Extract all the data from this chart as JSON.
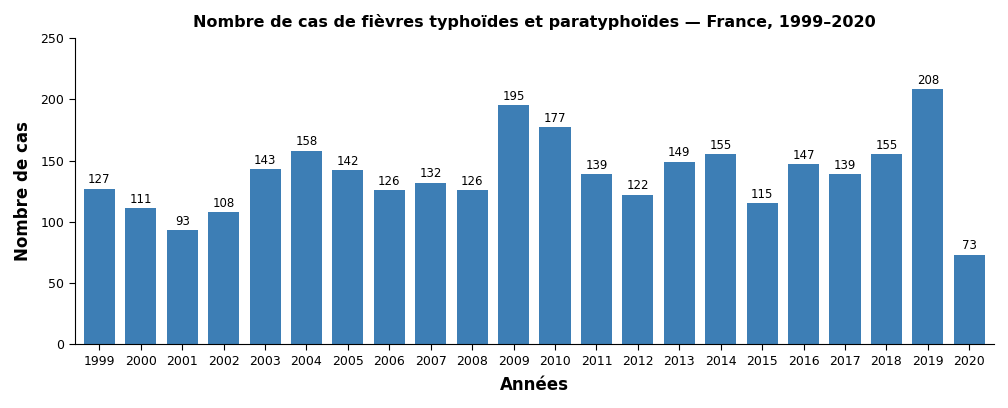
{
  "title": "Nombre de cas de fièvres typhoïdes et paratyphoïdes — France, 1999–2020",
  "xlabel": "Années",
  "ylabel": "Nombre de cas",
  "years": [
    1999,
    2000,
    2001,
    2002,
    2003,
    2004,
    2005,
    2006,
    2007,
    2008,
    2009,
    2010,
    2011,
    2012,
    2013,
    2014,
    2015,
    2016,
    2017,
    2018,
    2019,
    2020
  ],
  "values": [
    127,
    111,
    93,
    108,
    143,
    158,
    142,
    126,
    132,
    126,
    195,
    177,
    139,
    122,
    149,
    155,
    115,
    147,
    139,
    155,
    208,
    73
  ],
  "bar_color": "#3D7EB5",
  "ylim": [
    0,
    250
  ],
  "yticks": [
    0,
    50,
    100,
    150,
    200,
    250
  ],
  "title_fontsize": 11.5,
  "label_fontsize": 12,
  "tick_fontsize": 9,
  "annotation_fontsize": 8.5,
  "background_color": "#ffffff"
}
